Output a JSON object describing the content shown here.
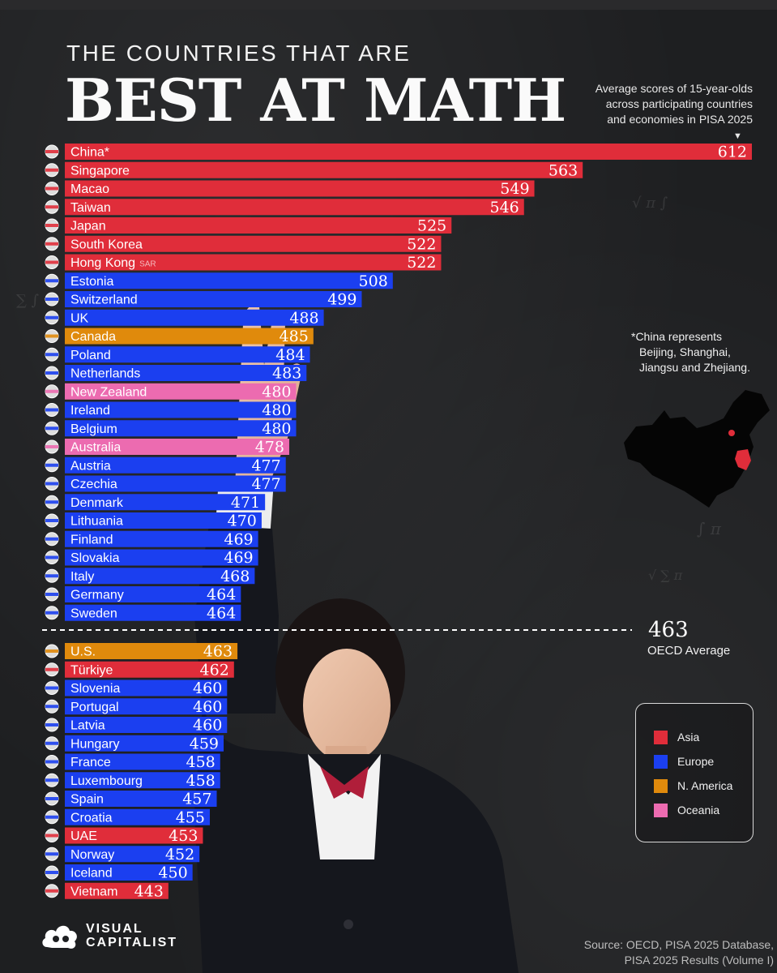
{
  "header": {
    "subtitle": "THE COUNTRIES THAT ARE",
    "title": "BEST AT MATH",
    "description": [
      "Average scores of 15-year-olds",
      "across participating countries",
      "and economies in PISA 2025"
    ],
    "description_marker": "▼"
  },
  "colors": {
    "Asia": "#e02d3a",
    "Europe": "#1b3ff0",
    "N. America": "#e08a0c",
    "Oceania": "#ec6bb0",
    "background": "#1e1f21"
  },
  "chart_data": {
    "type": "bar",
    "orientation": "horizontal",
    "title": "BEST AT MATH",
    "categories": [
      "China*",
      "Singapore",
      "Macao",
      "Taiwan",
      "Japan",
      "South Korea",
      "Hong Kong",
      "Estonia",
      "Switzerland",
      "UK",
      "Canada",
      "Poland",
      "Netherlands",
      "New Zealand",
      "Ireland",
      "Belgium",
      "Australia",
      "Austria",
      "Czechia",
      "Denmark",
      "Lithuania",
      "Finland",
      "Slovakia",
      "Italy",
      "Germany",
      "Sweden",
      "U.S.",
      "Türkiye",
      "Slovenia",
      "Portugal",
      "Latvia",
      "Hungary",
      "France",
      "Luxembourg",
      "Spain",
      "Croatia",
      "UAE",
      "Norway",
      "Iceland",
      "Vietnam"
    ],
    "category_suffix": {
      "Hong Kong": "SAR"
    },
    "values": [
      612,
      563,
      549,
      546,
      525,
      522,
      522,
      508,
      499,
      488,
      485,
      484,
      483,
      480,
      480,
      480,
      478,
      477,
      477,
      471,
      470,
      469,
      469,
      468,
      464,
      464,
      463,
      462,
      460,
      460,
      460,
      459,
      458,
      458,
      457,
      455,
      453,
      452,
      450,
      443
    ],
    "regions": [
      "Asia",
      "Asia",
      "Asia",
      "Asia",
      "Asia",
      "Asia",
      "Asia",
      "Europe",
      "Europe",
      "Europe",
      "N. America",
      "Europe",
      "Europe",
      "Oceania",
      "Europe",
      "Europe",
      "Oceania",
      "Europe",
      "Europe",
      "Europe",
      "Europe",
      "Europe",
      "Europe",
      "Europe",
      "Europe",
      "Europe",
      "N. America",
      "Asia",
      "Europe",
      "Europe",
      "Europe",
      "Europe",
      "Europe",
      "Europe",
      "Europe",
      "Europe",
      "Asia",
      "Europe",
      "Europe",
      "Asia"
    ],
    "reference_line": {
      "value": 463,
      "label": "OECD Average"
    },
    "legend": [
      "Asia",
      "Europe",
      "N. America",
      "Oceania"
    ],
    "legend_position": "right"
  },
  "avg": {
    "value": "463",
    "label": "OECD Average"
  },
  "note": [
    "*China represents",
    "Beijing, Shanghai,",
    "Jiangsu and Zhejiang."
  ],
  "legend": {
    "items": [
      "Asia",
      "Europe",
      "N. America",
      "Oceania"
    ]
  },
  "logo": {
    "line1": "VISUAL",
    "line2": "CAPITALIST"
  },
  "source": [
    "Source: OECD, PISA 2025 Database,",
    "PISA 2025 Results (Volume I)"
  ]
}
